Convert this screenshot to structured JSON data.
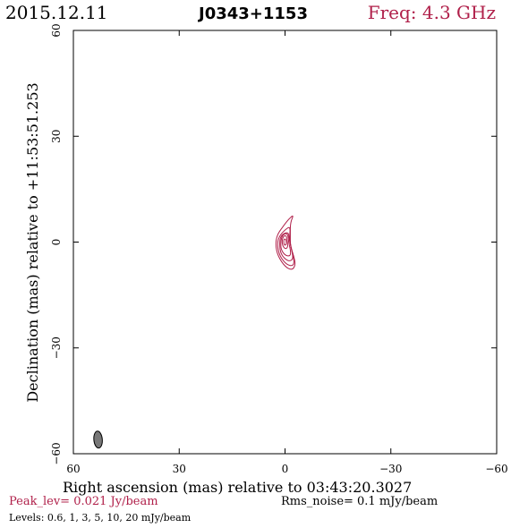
{
  "header": {
    "date": "2015.12.11",
    "source": "J0343+1153",
    "frequency": "Freq: 4.3 GHz"
  },
  "footer": {
    "peak": "Peak_lev=  0.021 Jy/beam",
    "rms": "Rms_noise=   0.1 mJy/beam",
    "levels": "Levels: 0.6,    1,    3,    5,   10,   20  mJy/beam"
  },
  "colors": {
    "contour": "#b0204a",
    "beam": "#777777",
    "frame": "#000000"
  },
  "chart_data": {
    "type": "contour",
    "title": "J0343+1153",
    "xlabel": "Right ascension (mas) relative to 03:43:20.3027",
    "ylabel": "Declination (mas) relative to +11:53:51.253",
    "xlim": [
      60,
      -60
    ],
    "ylim": [
      -60,
      60
    ],
    "xticks": [
      60,
      30,
      0,
      -30,
      -60
    ],
    "yticks": [
      60,
      30,
      0,
      -30,
      -60
    ],
    "xtick_labels": [
      "60",
      "30",
      "0",
      "−30",
      "−60"
    ],
    "ytick_labels": [
      "60",
      "30",
      "0",
      "−30",
      "−60"
    ],
    "grid": false,
    "levels_mJy": [
      0.6,
      1,
      3,
      5,
      10,
      20
    ],
    "peak_Jy_per_beam": 0.021,
    "rms_noise_mJy_per_beam": 0.1,
    "beam": {
      "ra": 53,
      "dec": -56,
      "major_mas": 4.8,
      "minor_mas": 2.4,
      "pa_deg": -5
    },
    "contours": [
      {
        "level": 0.6,
        "points": [
          [
            -2.5,
            7.8
          ],
          [
            -1.5,
            5.5
          ],
          [
            -1.5,
            2.0
          ],
          [
            -1.5,
            -1.0
          ],
          [
            -2.5,
            -4.0
          ],
          [
            -3.0,
            -6.5
          ],
          [
            -2.0,
            -8.0
          ],
          [
            0.0,
            -7.0
          ],
          [
            2.0,
            -4.0
          ],
          [
            2.7,
            -1.0
          ],
          [
            2.3,
            2.0
          ],
          [
            0.5,
            4.5
          ],
          [
            -1.0,
            6.5
          ]
        ]
      },
      {
        "level": 1,
        "points": [
          [
            -1.5,
            4.5
          ],
          [
            -1.3,
            1.5
          ],
          [
            -1.6,
            -1.5
          ],
          [
            -2.5,
            -4.5
          ],
          [
            -2.5,
            -6.8
          ],
          [
            -0.5,
            -6.5
          ],
          [
            1.5,
            -4.0
          ],
          [
            2.2,
            -1.0
          ],
          [
            1.8,
            1.5
          ],
          [
            0.0,
            3.5
          ]
        ]
      },
      {
        "level": 3,
        "points": [
          [
            -1.0,
            3.0
          ],
          [
            -1.2,
            0.5
          ],
          [
            -2.0,
            -2.5
          ],
          [
            -2.3,
            -5.0
          ],
          [
            -0.8,
            -5.5
          ],
          [
            1.2,
            -3.5
          ],
          [
            1.6,
            -0.5
          ],
          [
            1.2,
            2.0
          ]
        ]
      },
      {
        "level": 5,
        "points": [
          [
            -0.8,
            2.5
          ],
          [
            -1.0,
            0.0
          ],
          [
            -1.6,
            -2.5
          ],
          [
            -1.5,
            -4.0
          ],
          [
            0.0,
            -3.8
          ],
          [
            1.2,
            -2.0
          ],
          [
            1.2,
            0.5
          ],
          [
            0.6,
            2.2
          ]
        ]
      },
      {
        "level": 10,
        "points": [
          [
            -0.4,
            1.8
          ],
          [
            -0.7,
            0.0
          ],
          [
            -0.8,
            -1.5
          ],
          [
            0.0,
            -2.0
          ],
          [
            0.8,
            -0.8
          ],
          [
            0.8,
            0.8
          ],
          [
            0.3,
            1.8
          ]
        ]
      },
      {
        "level": 20,
        "points": [
          [
            -0.2,
            0.9
          ],
          [
            -0.4,
            0.0
          ],
          [
            -0.3,
            -0.8
          ],
          [
            0.2,
            -0.9
          ],
          [
            0.4,
            0.0
          ],
          [
            0.3,
            0.8
          ]
        ]
      }
    ]
  }
}
